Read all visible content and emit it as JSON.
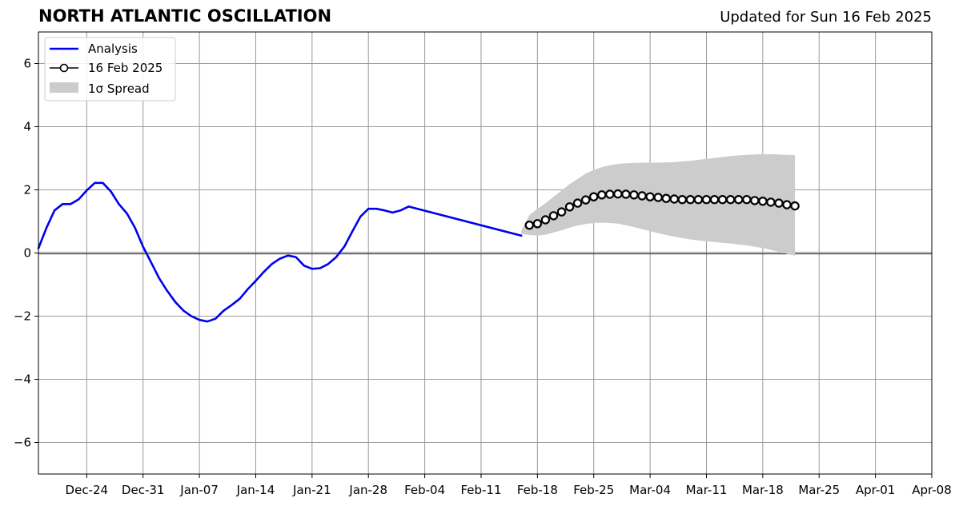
{
  "header": {
    "title": "NORTH ATLANTIC OSCILLATION",
    "updated": "Updated for Sun 16 Feb 2025"
  },
  "colors": {
    "analysis": "#0000ee",
    "forecast_marker_edge": "#000000",
    "forecast_marker_face": "#ffffff",
    "spread": "#cccccc",
    "grid": "#999999",
    "zero_line": "#333333"
  },
  "chart_data": {
    "type": "line",
    "title": "NORTH ATLANTIC OSCILLATION",
    "xlabel": "",
    "ylabel": "",
    "xlim": [
      "2024-12-18",
      "2025-04-08"
    ],
    "ylim": [
      -7,
      7
    ],
    "grid": true,
    "legend_position": "top-left",
    "x_ticks": [
      {
        "date": "2024-12-24",
        "label": "Dec-24"
      },
      {
        "date": "2024-12-31",
        "label": "Dec-31"
      },
      {
        "date": "2025-01-07",
        "label": "Jan-07"
      },
      {
        "date": "2025-01-14",
        "label": "Jan-14"
      },
      {
        "date": "2025-01-21",
        "label": "Jan-21"
      },
      {
        "date": "2025-01-28",
        "label": "Jan-28"
      },
      {
        "date": "2025-02-04",
        "label": "Feb-04"
      },
      {
        "date": "2025-02-11",
        "label": "Feb-11"
      },
      {
        "date": "2025-02-18",
        "label": "Feb-18"
      },
      {
        "date": "2025-02-25",
        "label": "Feb-25"
      },
      {
        "date": "2025-03-04",
        "label": "Mar-04"
      },
      {
        "date": "2025-03-11",
        "label": "Mar-11"
      },
      {
        "date": "2025-03-18",
        "label": "Mar-18"
      },
      {
        "date": "2025-03-25",
        "label": "Mar-25"
      },
      {
        "date": "2025-04-01",
        "label": "Apr-01"
      },
      {
        "date": "2025-04-08",
        "label": "Apr-08"
      }
    ],
    "y_ticks": [
      {
        "value": -6,
        "label": "−6"
      },
      {
        "value": -4,
        "label": "−4"
      },
      {
        "value": -2,
        "label": "−2"
      },
      {
        "value": 0,
        "label": "0"
      },
      {
        "value": 2,
        "label": "2"
      },
      {
        "value": 4,
        "label": "4"
      },
      {
        "value": 6,
        "label": "6"
      }
    ],
    "series": [
      {
        "name": "Analysis",
        "style": "line",
        "points": [
          [
            "2024-12-18",
            0.15
          ],
          [
            "2024-12-19",
            0.8
          ],
          [
            "2024-12-20",
            1.35
          ],
          [
            "2024-12-21",
            1.55
          ],
          [
            "2024-12-22",
            1.55
          ],
          [
            "2024-12-23",
            1.7
          ],
          [
            "2024-12-24",
            1.98
          ],
          [
            "2024-12-25",
            2.22
          ],
          [
            "2024-12-26",
            2.22
          ],
          [
            "2024-12-27",
            1.95
          ],
          [
            "2024-12-28",
            1.55
          ],
          [
            "2024-12-29",
            1.25
          ],
          [
            "2024-12-30",
            0.8
          ],
          [
            "2024-12-31",
            0.2
          ],
          [
            "2025-01-01",
            -0.3
          ],
          [
            "2025-01-02",
            -0.8
          ],
          [
            "2025-01-03",
            -1.2
          ],
          [
            "2025-01-04",
            -1.55
          ],
          [
            "2025-01-05",
            -1.82
          ],
          [
            "2025-01-06",
            -2.0
          ],
          [
            "2025-01-07",
            -2.12
          ],
          [
            "2025-01-08",
            -2.17
          ],
          [
            "2025-01-09",
            -2.08
          ],
          [
            "2025-01-10",
            -1.83
          ],
          [
            "2025-01-11",
            -1.65
          ],
          [
            "2025-01-12",
            -1.45
          ],
          [
            "2025-01-13",
            -1.15
          ],
          [
            "2025-01-14",
            -0.88
          ],
          [
            "2025-01-15",
            -0.6
          ],
          [
            "2025-01-16",
            -0.35
          ],
          [
            "2025-01-17",
            -0.18
          ],
          [
            "2025-01-18",
            -0.08
          ],
          [
            "2025-01-19",
            -0.13
          ],
          [
            "2025-01-20",
            -0.4
          ],
          [
            "2025-01-21",
            -0.5
          ],
          [
            "2025-01-22",
            -0.48
          ],
          [
            "2025-01-23",
            -0.35
          ],
          [
            "2025-01-24",
            -0.13
          ],
          [
            "2025-01-25",
            0.2
          ],
          [
            "2025-01-26",
            0.68
          ],
          [
            "2025-01-27",
            1.15
          ],
          [
            "2025-01-28",
            1.4
          ],
          [
            "2025-01-29",
            1.4
          ],
          [
            "2025-01-30",
            1.35
          ],
          [
            "2025-01-31",
            1.28
          ],
          [
            "2025-02-01",
            1.35
          ],
          [
            "2025-02-02",
            1.47
          ],
          [
            "2025-02-16",
            0.55
          ]
        ]
      },
      {
        "name": "16 Feb 2025",
        "style": "line-markers",
        "points": [
          [
            "2025-02-17",
            0.88
          ],
          [
            "2025-02-18",
            0.93
          ],
          [
            "2025-02-19",
            1.05
          ],
          [
            "2025-02-20",
            1.18
          ],
          [
            "2025-02-21",
            1.3
          ],
          [
            "2025-02-22",
            1.46
          ],
          [
            "2025-02-23",
            1.58
          ],
          [
            "2025-02-24",
            1.68
          ],
          [
            "2025-02-25",
            1.78
          ],
          [
            "2025-02-26",
            1.84
          ],
          [
            "2025-02-27",
            1.86
          ],
          [
            "2025-02-28",
            1.87
          ],
          [
            "2025-03-01",
            1.86
          ],
          [
            "2025-03-02",
            1.84
          ],
          [
            "2025-03-03",
            1.81
          ],
          [
            "2025-03-04",
            1.78
          ],
          [
            "2025-03-05",
            1.76
          ],
          [
            "2025-03-06",
            1.73
          ],
          [
            "2025-03-07",
            1.71
          ],
          [
            "2025-03-08",
            1.69
          ],
          [
            "2025-03-09",
            1.69
          ],
          [
            "2025-03-10",
            1.69
          ],
          [
            "2025-03-11",
            1.69
          ],
          [
            "2025-03-12",
            1.69
          ],
          [
            "2025-03-13",
            1.69
          ],
          [
            "2025-03-14",
            1.69
          ],
          [
            "2025-03-15",
            1.69
          ],
          [
            "2025-03-16",
            1.69
          ],
          [
            "2025-03-17",
            1.66
          ],
          [
            "2025-03-18",
            1.64
          ],
          [
            "2025-03-19",
            1.61
          ],
          [
            "2025-03-20",
            1.58
          ],
          [
            "2025-03-21",
            1.53
          ],
          [
            "2025-03-22",
            1.49
          ]
        ]
      },
      {
        "name": "1σ Spread",
        "style": "band",
        "points": [
          [
            "2025-02-16",
            0.6,
            0.7
          ],
          [
            "2025-02-17",
            0.57,
            1.2
          ],
          [
            "2025-02-18",
            0.55,
            1.4
          ],
          [
            "2025-02-19",
            0.58,
            1.58
          ],
          [
            "2025-02-20",
            0.65,
            1.78
          ],
          [
            "2025-02-21",
            0.72,
            1.98
          ],
          [
            "2025-02-22",
            0.8,
            2.18
          ],
          [
            "2025-02-23",
            0.87,
            2.35
          ],
          [
            "2025-02-24",
            0.92,
            2.52
          ],
          [
            "2025-02-25",
            0.95,
            2.63
          ],
          [
            "2025-02-26",
            0.96,
            2.72
          ],
          [
            "2025-02-27",
            0.95,
            2.78
          ],
          [
            "2025-02-28",
            0.93,
            2.82
          ],
          [
            "2025-03-01",
            0.88,
            2.84
          ],
          [
            "2025-03-02",
            0.82,
            2.85
          ],
          [
            "2025-03-03",
            0.76,
            2.86
          ],
          [
            "2025-03-04",
            0.69,
            2.86
          ],
          [
            "2025-03-05",
            0.63,
            2.86
          ],
          [
            "2025-03-06",
            0.57,
            2.87
          ],
          [
            "2025-03-07",
            0.52,
            2.88
          ],
          [
            "2025-03-08",
            0.47,
            2.9
          ],
          [
            "2025-03-09",
            0.43,
            2.92
          ],
          [
            "2025-03-10",
            0.4,
            2.95
          ],
          [
            "2025-03-11",
            0.37,
            2.98
          ],
          [
            "2025-03-12",
            0.35,
            3.01
          ],
          [
            "2025-03-13",
            0.32,
            3.04
          ],
          [
            "2025-03-14",
            0.3,
            3.07
          ],
          [
            "2025-03-15",
            0.27,
            3.09
          ],
          [
            "2025-03-16",
            0.24,
            3.11
          ],
          [
            "2025-03-17",
            0.2,
            3.12
          ],
          [
            "2025-03-18",
            0.16,
            3.13
          ],
          [
            "2025-03-19",
            0.1,
            3.13
          ],
          [
            "2025-03-20",
            0.04,
            3.12
          ],
          [
            "2025-03-21",
            -0.03,
            3.11
          ],
          [
            "2025-03-22",
            -0.08,
            3.1
          ]
        ]
      }
    ]
  }
}
